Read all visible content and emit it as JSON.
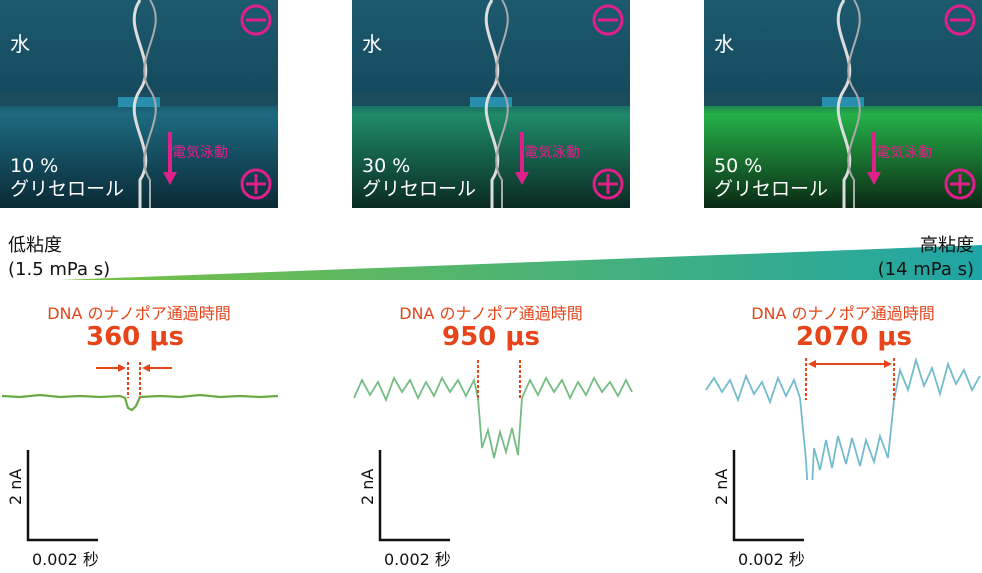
{
  "panels": [
    {
      "water": "水",
      "conc_value": "10 %",
      "conc_label": "グリセロール",
      "electro": "電気泳動",
      "color": "#1d5e72"
    },
    {
      "water": "水",
      "conc_value": "30 %",
      "conc_label": "グリセロール",
      "electro": "電気泳動",
      "color": "#1f7a5a"
    },
    {
      "water": "水",
      "conc_value": "50 %",
      "conc_label": "グリセロール",
      "electro": "電気泳動",
      "color": "#22a040"
    }
  ],
  "viscosity": {
    "low_label": "低粘度",
    "low_value": "(1.5 mPa s)",
    "high_label": "高粘度",
    "high_value": "(14 mPa s)"
  },
  "traces": [
    {
      "title": "DNA のナノポア通過時間",
      "value": "360 μs",
      "color": "#6aab47",
      "scale_y": "2 nA",
      "scale_x": "0.002 秒"
    },
    {
      "title": "DNA のナノポア通過時間",
      "value": "950 μs",
      "color": "#74bc84",
      "scale_y": "2 nA",
      "scale_x": "0.002 秒"
    },
    {
      "title": "DNA のナノポア通過時間",
      "value": "2070 μs",
      "color": "#73bccd",
      "scale_y": "2 nA",
      "scale_x": "0.002 秒"
    }
  ],
  "colors": {
    "accent_red": "#e8441a",
    "minus_plus": "#e0208a",
    "gradient_start": "#7bc142",
    "gradient_end": "#20a5a5"
  }
}
